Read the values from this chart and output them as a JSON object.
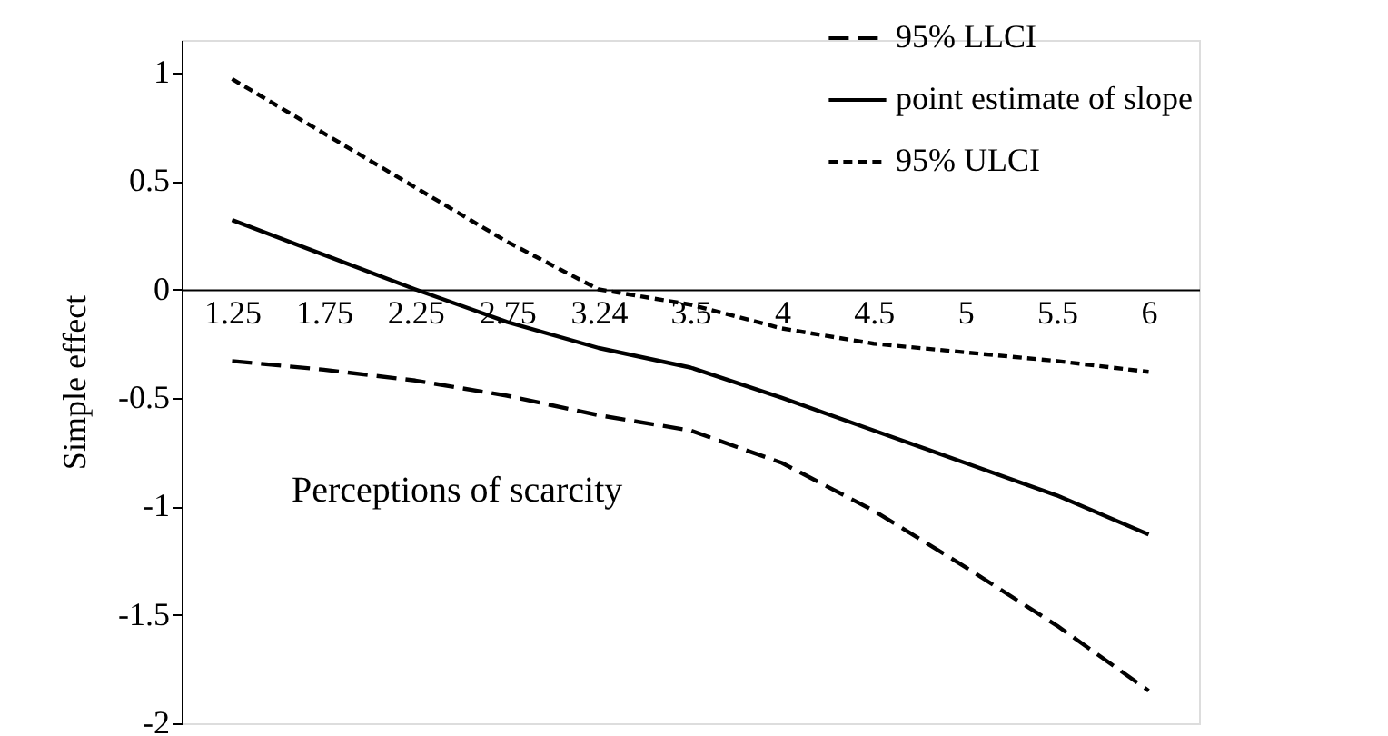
{
  "chart_data": {
    "type": "line",
    "xlabel": "Perceptions of scarcity",
    "ylabel": "Simple effect",
    "categories": [
      "1.25",
      "1.75",
      "2.25",
      "2.75",
      "3.24",
      "3.5",
      "4",
      "4.5",
      "5",
      "5.5",
      "6"
    ],
    "series": [
      {
        "name": "95% LLCI",
        "color": "#000000",
        "line_style": "dashed",
        "values": [
          -0.33,
          -0.37,
          -0.42,
          -0.49,
          -0.58,
          -0.65,
          -0.8,
          -1.02,
          -1.28,
          -1.55,
          -1.85
        ]
      },
      {
        "name": "point estimate of slope",
        "color": "#000000",
        "line_style": "solid",
        "values": [
          0.32,
          0.16,
          0.0,
          -0.15,
          -0.27,
          -0.36,
          -0.5,
          -0.65,
          -0.8,
          -0.95,
          -1.13
        ]
      },
      {
        "name": "95% ULCI",
        "color": "#000000",
        "line_style": "dotted",
        "values": [
          0.97,
          0.72,
          0.47,
          0.22,
          0.0,
          -0.07,
          -0.18,
          -0.25,
          -0.29,
          -0.33,
          -0.38
        ]
      }
    ],
    "ylim": [
      -2,
      1.15
    ],
    "yticks": [
      1,
      0.5,
      0,
      -0.5,
      -1,
      -1.5,
      -2
    ],
    "grid": false,
    "legend": "top right",
    "marker": "none"
  }
}
